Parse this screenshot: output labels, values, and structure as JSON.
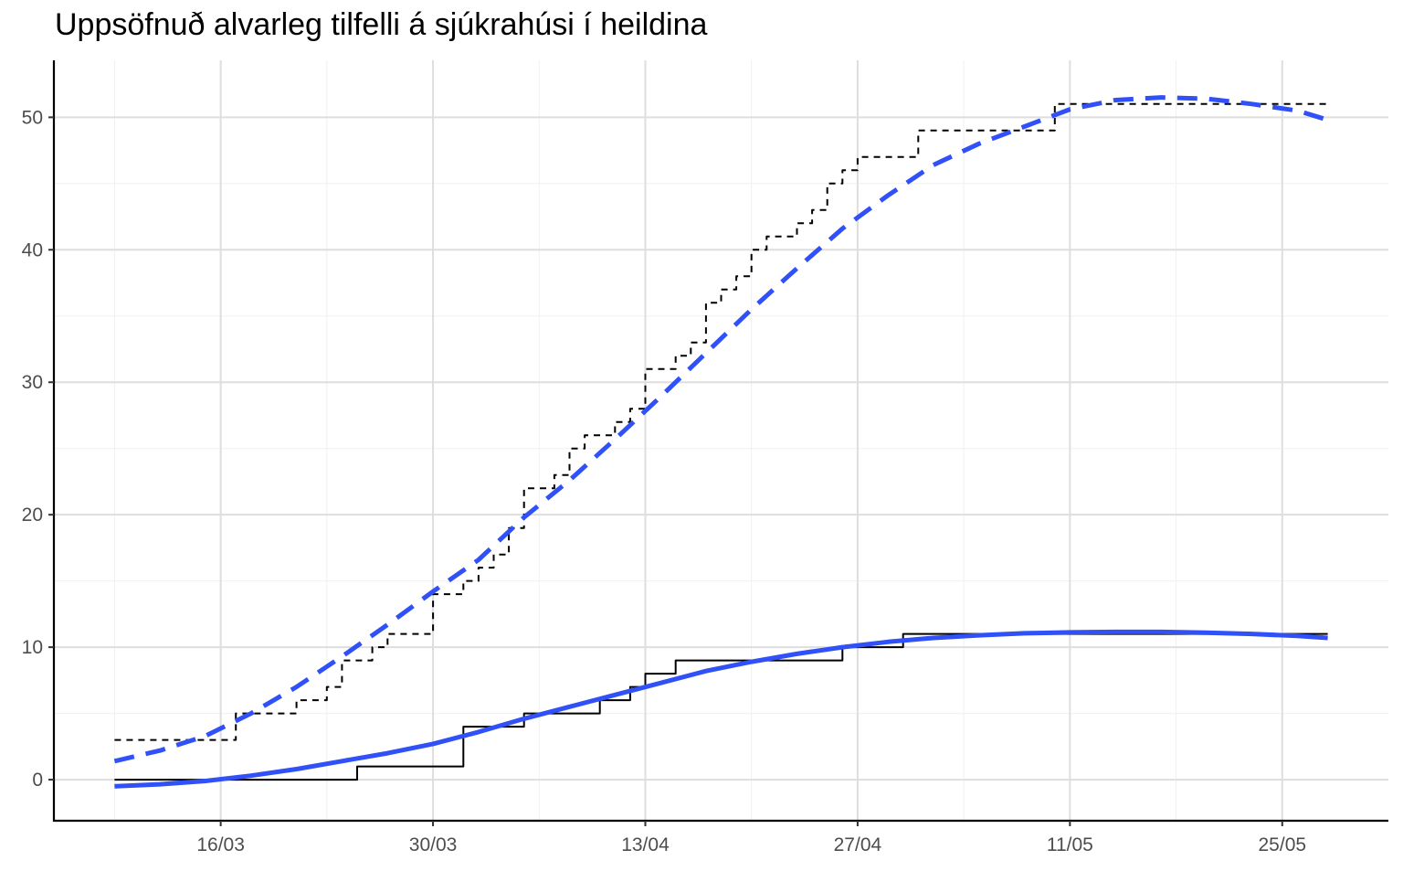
{
  "chart_data": {
    "type": "line",
    "title": "Uppsöfnuð alvarleg tilfelli á sjúkrahúsi í heildina",
    "xlabel": "",
    "ylabel": "",
    "x_tick_labels": [
      "16/03",
      "30/03",
      "13/04",
      "27/04",
      "11/05",
      "25/05"
    ],
    "x_tick_dates": [
      "2020-03-16",
      "2020-03-30",
      "2020-04-13",
      "2020-04-27",
      "2020-05-11",
      "2020-05-25"
    ],
    "y_ticks": [
      0,
      10,
      20,
      30,
      40,
      50
    ],
    "xlim": [
      "2020-03-05",
      "2020-06-01"
    ],
    "ylim": [
      -3.1,
      54.3
    ],
    "grid": true,
    "legend": "none",
    "series": [
      {
        "style": "dashed-step",
        "color": "#000000",
        "x": [
          "2020-03-09",
          "2020-03-15",
          "2020-03-17",
          "2020-03-20",
          "2020-03-21",
          "2020-03-22",
          "2020-03-23",
          "2020-03-24",
          "2020-03-25",
          "2020-03-26",
          "2020-03-27",
          "2020-03-28",
          "2020-03-29",
          "2020-03-30",
          "2020-03-31",
          "2020-04-01",
          "2020-04-02",
          "2020-04-03",
          "2020-04-04",
          "2020-04-05",
          "2020-04-06",
          "2020-04-07",
          "2020-04-08",
          "2020-04-09",
          "2020-04-10",
          "2020-04-11",
          "2020-04-12",
          "2020-04-13",
          "2020-04-14",
          "2020-04-15",
          "2020-04-16",
          "2020-04-17",
          "2020-04-18",
          "2020-04-19",
          "2020-04-20",
          "2020-04-21",
          "2020-04-22",
          "2020-04-23",
          "2020-04-24",
          "2020-04-25",
          "2020-04-26",
          "2020-04-27",
          "2020-04-28",
          "2020-04-29",
          "2020-04-30",
          "2020-05-01",
          "2020-05-02",
          "2020-05-03",
          "2020-05-04",
          "2020-05-05",
          "2020-05-06",
          "2020-05-07",
          "2020-05-08",
          "2020-05-09",
          "2020-05-10",
          "2020-05-28"
        ],
        "values": [
          3,
          3,
          5,
          5,
          6,
          6,
          7,
          9,
          9,
          10,
          11,
          11,
          11,
          14,
          14,
          15,
          16,
          17,
          19,
          22,
          22,
          23,
          25,
          26,
          26,
          27,
          28,
          31,
          31,
          32,
          33,
          36,
          37,
          38,
          40,
          41,
          41,
          42,
          43,
          45,
          46,
          47,
          47,
          47,
          47,
          49,
          49,
          49,
          49,
          49,
          49,
          49,
          49,
          49,
          51,
          51
        ]
      },
      {
        "style": "solid-step",
        "color": "#000000",
        "x": [
          "2020-03-09",
          "2020-03-24",
          "2020-03-25",
          "2020-03-31",
          "2020-04-01",
          "2020-04-04",
          "2020-04-05",
          "2020-04-09",
          "2020-04-10",
          "2020-04-11",
          "2020-04-12",
          "2020-04-13",
          "2020-04-14",
          "2020-04-15",
          "2020-04-25",
          "2020-04-26",
          "2020-04-29",
          "2020-04-30",
          "2020-05-28"
        ],
        "values": [
          0,
          0,
          1,
          1,
          4,
          4,
          5,
          5,
          6,
          6,
          7,
          8,
          8,
          9,
          9,
          10,
          10,
          11,
          11
        ]
      },
      {
        "style": "dashed-smooth",
        "color": "#3050f8",
        "x": [
          "2020-03-09",
          "2020-03-12",
          "2020-03-15",
          "2020-03-18",
          "2020-03-21",
          "2020-03-24",
          "2020-03-27",
          "2020-03-30",
          "2020-04-02",
          "2020-04-05",
          "2020-04-08",
          "2020-04-11",
          "2020-04-14",
          "2020-04-17",
          "2020-04-20",
          "2020-04-23",
          "2020-04-26",
          "2020-04-29",
          "2020-05-02",
          "2020-05-05",
          "2020-05-08",
          "2020-05-11",
          "2020-05-14",
          "2020-05-17",
          "2020-05-20",
          "2020-05-23",
          "2020-05-26",
          "2020-05-28"
        ],
        "values": [
          1.4,
          2.2,
          3.3,
          5.0,
          7.0,
          9.3,
          11.7,
          14.2,
          16.6,
          19.8,
          22.6,
          25.7,
          28.9,
          32.2,
          35.5,
          38.6,
          41.6,
          44.1,
          46.4,
          48.0,
          49.3,
          50.6,
          51.3,
          51.5,
          51.4,
          51.0,
          50.5,
          49.8
        ]
      },
      {
        "style": "solid-smooth",
        "color": "#3050f8",
        "x": [
          "2020-03-09",
          "2020-03-12",
          "2020-03-15",
          "2020-03-18",
          "2020-03-21",
          "2020-03-24",
          "2020-03-27",
          "2020-03-30",
          "2020-04-02",
          "2020-04-05",
          "2020-04-08",
          "2020-04-11",
          "2020-04-14",
          "2020-04-17",
          "2020-04-20",
          "2020-04-23",
          "2020-04-26",
          "2020-04-29",
          "2020-05-02",
          "2020-05-05",
          "2020-05-08",
          "2020-05-11",
          "2020-05-14",
          "2020-05-17",
          "2020-05-20",
          "2020-05-23",
          "2020-05-26",
          "2020-05-28"
        ],
        "values": [
          -0.5,
          -0.35,
          -0.1,
          0.3,
          0.8,
          1.4,
          2.0,
          2.7,
          3.6,
          4.6,
          5.5,
          6.4,
          7.3,
          8.2,
          8.9,
          9.5,
          10.0,
          10.4,
          10.7,
          10.9,
          11.05,
          11.12,
          11.15,
          11.15,
          11.1,
          11.0,
          10.85,
          10.7
        ]
      }
    ]
  }
}
